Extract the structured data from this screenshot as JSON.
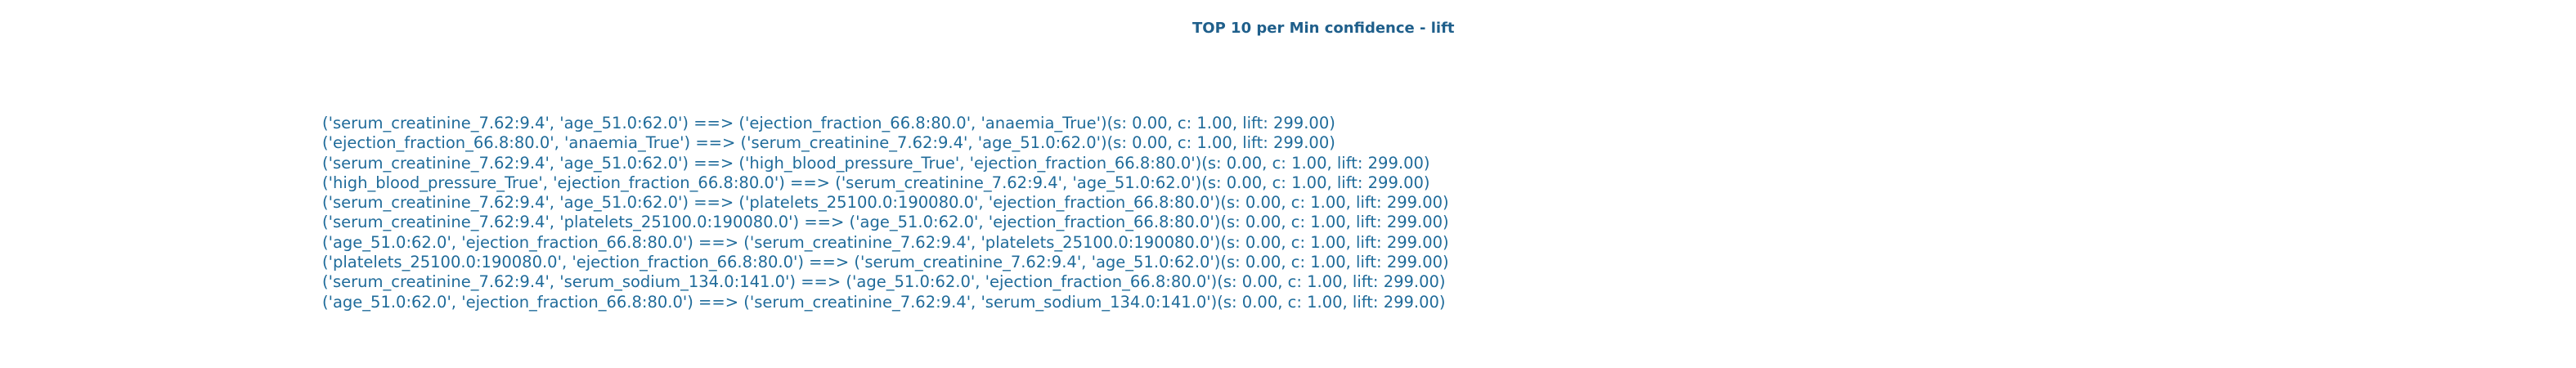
{
  "chart_data": {
    "type": "table",
    "title": "TOP 10 per Min confidence - lift",
    "text_color": "#1f6b9a",
    "title_color": "#1f5f8b",
    "rules": [
      "('serum_creatinine_7.62:9.4', 'age_51.0:62.0') ==> ('ejection_fraction_66.8:80.0', 'anaemia_True')(s: 0.00, c: 1.00, lift: 299.00)",
      "('ejection_fraction_66.8:80.0', 'anaemia_True') ==> ('serum_creatinine_7.62:9.4', 'age_51.0:62.0')(s: 0.00, c: 1.00, lift: 299.00)",
      "('serum_creatinine_7.62:9.4', 'age_51.0:62.0') ==> ('high_blood_pressure_True', 'ejection_fraction_66.8:80.0')(s: 0.00, c: 1.00, lift: 299.00)",
      "('high_blood_pressure_True', 'ejection_fraction_66.8:80.0') ==> ('serum_creatinine_7.62:9.4', 'age_51.0:62.0')(s: 0.00, c: 1.00, lift: 299.00)",
      "('serum_creatinine_7.62:9.4', 'age_51.0:62.0') ==> ('platelets_25100.0:190080.0', 'ejection_fraction_66.8:80.0')(s: 0.00, c: 1.00, lift: 299.00)",
      "('serum_creatinine_7.62:9.4', 'platelets_25100.0:190080.0') ==> ('age_51.0:62.0', 'ejection_fraction_66.8:80.0')(s: 0.00, c: 1.00, lift: 299.00)",
      "('age_51.0:62.0', 'ejection_fraction_66.8:80.0') ==> ('serum_creatinine_7.62:9.4', 'platelets_25100.0:190080.0')(s: 0.00, c: 1.00, lift: 299.00)",
      "('platelets_25100.0:190080.0', 'ejection_fraction_66.8:80.0') ==> ('serum_creatinine_7.62:9.4', 'age_51.0:62.0')(s: 0.00, c: 1.00, lift: 299.00)",
      "('serum_creatinine_7.62:9.4', 'serum_sodium_134.0:141.0') ==> ('age_51.0:62.0', 'ejection_fraction_66.8:80.0')(s: 0.00, c: 1.00, lift: 299.00)",
      "('age_51.0:62.0', 'ejection_fraction_66.8:80.0') ==> ('serum_creatinine_7.62:9.4', 'serum_sodium_134.0:141.0')(s: 0.00, c: 1.00, lift: 299.00)"
    ]
  }
}
